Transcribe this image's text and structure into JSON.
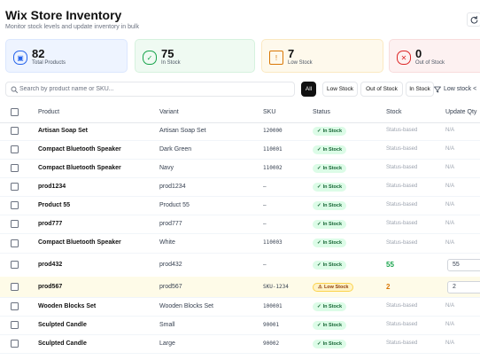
{
  "header": {
    "title": "Wix Store Inventory",
    "subtitle": "Monitor stock levels and update inventory in bulk",
    "refresh_icon": "refresh-icon"
  },
  "stats": [
    {
      "value": "82",
      "label": "Total Products",
      "icon": "box-icon",
      "bg": "#eef4ff",
      "border": "#dbe7fe",
      "icon_color": "#2563eb"
    },
    {
      "value": "75",
      "label": "In Stock",
      "icon": "check-circle-icon",
      "bg": "#effaf2",
      "border": "#d6f2de",
      "icon_color": "#16a34a"
    },
    {
      "value": "7",
      "label": "Low Stock",
      "icon": "warning-icon",
      "bg": "#fef9ec",
      "border": "#fbe9c2",
      "icon_color": "#d97706"
    },
    {
      "value": "0",
      "label": "Out of Stock",
      "icon": "x-circle-icon",
      "bg": "#fdf1f1",
      "border": "#f8dcdc",
      "icon_color": "#dc2626"
    }
  ],
  "toolbar": {
    "search_placeholder": "Search by product name or SKU...",
    "filters": [
      "All",
      "Low Stock",
      "Out of Stock",
      "In Stock"
    ],
    "active_filter": "All",
    "sort_label": "Low stock <"
  },
  "table": {
    "columns": [
      "Product",
      "Variant",
      "SKU",
      "Status",
      "Stock",
      "Update Qty"
    ],
    "rows": [
      {
        "product": "Artisan Soap Set",
        "variant": "Artisan Soap Set",
        "sku": "120000",
        "status": "In Stock",
        "stock": "Status-based",
        "update": "N/A"
      },
      {
        "product": "Compact Bluetooth Speaker",
        "variant": "Dark Green",
        "sku": "110001",
        "status": "In Stock",
        "stock": "Status-based",
        "update": "N/A"
      },
      {
        "product": "Compact Bluetooth Speaker",
        "variant": "Navy",
        "sku": "110002",
        "status": "In Stock",
        "stock": "Status-based",
        "update": "N/A"
      },
      {
        "product": "prod1234",
        "variant": "prod1234",
        "sku": "–",
        "status": "In Stock",
        "stock": "Status-based",
        "update": "N/A"
      },
      {
        "product": "Product 55",
        "variant": "Product 55",
        "sku": "–",
        "status": "In Stock",
        "stock": "Status-based",
        "update": "N/A"
      },
      {
        "product": "prod777",
        "variant": "prod777",
        "sku": "–",
        "status": "In Stock",
        "stock": "Status-based",
        "update": "N/A"
      },
      {
        "product": "Compact Bluetooth Speaker",
        "variant": "White",
        "sku": "110003",
        "status": "In Stock",
        "stock": "Status-based",
        "update": "N/A"
      },
      {
        "product": "prod432",
        "variant": "prod432",
        "sku": "–",
        "status": "In Stock",
        "stock": "55",
        "update": "55"
      },
      {
        "product": "prod567",
        "variant": "prod567",
        "sku": "SKU-1234",
        "status": "Low Stock",
        "stock": "2",
        "update": "2"
      },
      {
        "product": "Wooden Blocks Set",
        "variant": "Wooden Blocks Set",
        "sku": "100001",
        "status": "In Stock",
        "stock": "Status-based",
        "update": "N/A"
      },
      {
        "product": "Sculpted Candle",
        "variant": "Small",
        "sku": "90001",
        "status": "In Stock",
        "stock": "Status-based",
        "update": "N/A"
      },
      {
        "product": "Sculpted Candle",
        "variant": "Large",
        "sku": "90002",
        "status": "In Stock",
        "stock": "Status-based",
        "update": "N/A"
      }
    ]
  }
}
